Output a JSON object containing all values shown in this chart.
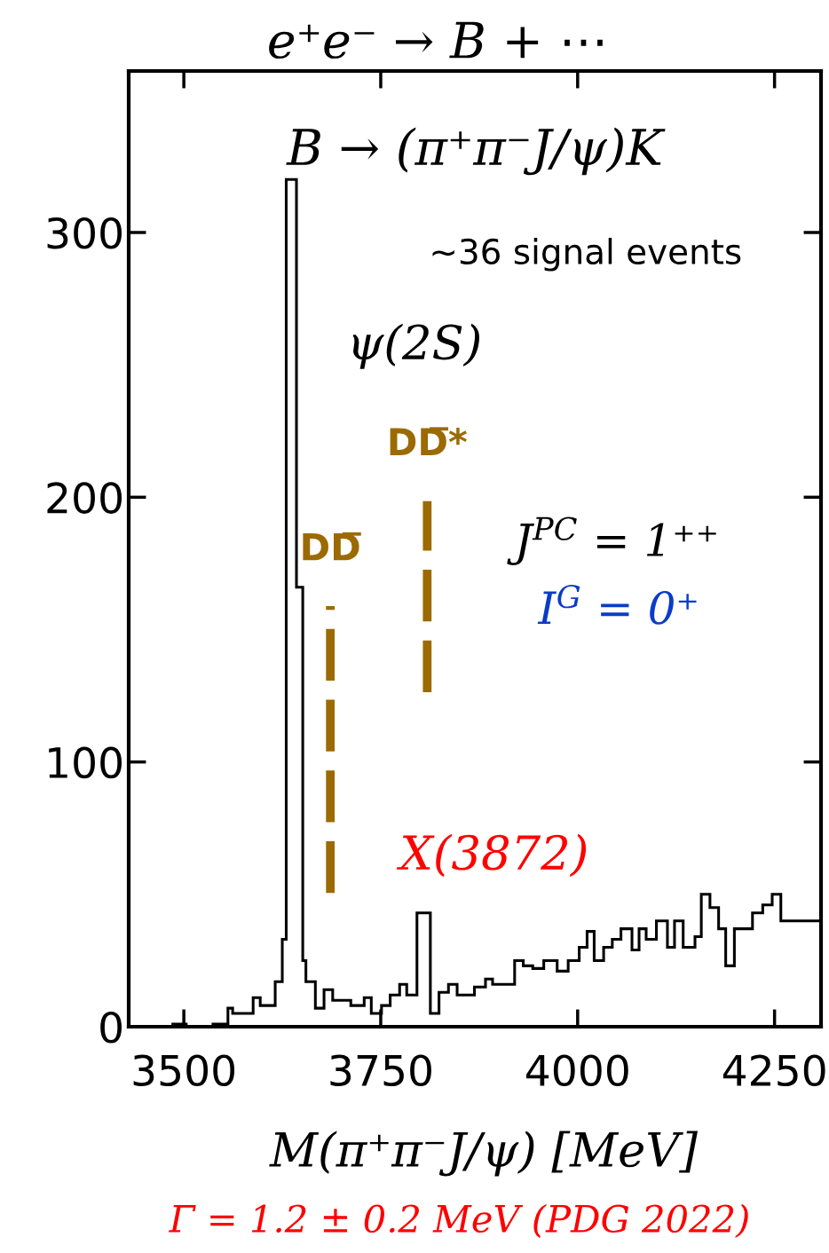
{
  "chart_data": {
    "type": "histogram",
    "title": "e⁺e⁻ → B + ⋯",
    "subtitle": "B → (π⁺π⁻J/ψ)K",
    "xlabel": "M(π⁺π⁻J/ψ) [MeV]",
    "annotations": [
      "~36 signal events",
      "ψ(2S)",
      "J$^{PC}$ = 1⁺⁺",
      "I$^{G}$ = 0⁺",
      "X(3872)",
      "Γ = 1.2 ± 0.2 MeV (PDG 2022)"
    ],
    "bins": [
      3430,
      3486,
      3503,
      3537,
      3556,
      3562,
      3588,
      3597,
      3616,
      3625,
      3630,
      3643,
      3651,
      3655,
      3667,
      3678,
      3689,
      3712,
      3729,
      3738,
      3751,
      3762,
      3774,
      3783,
      3796,
      3813,
      3824,
      3836,
      3847,
      3869,
      3883,
      3892,
      3920,
      3931,
      3943,
      3957,
      3974,
      3988,
      4002,
      4012,
      4021,
      4033,
      4044,
      4055,
      4069,
      4078,
      4087,
      4100,
      4114,
      4123,
      4134,
      4149,
      4157,
      4168,
      4179,
      4188,
      4199,
      4222,
      4235,
      4247,
      4258,
      4309
    ],
    "values": [
      0,
      1,
      0,
      1,
      7,
      5,
      11,
      8,
      17,
      33,
      320,
      166,
      25,
      17,
      7,
      14,
      10,
      8,
      11,
      5,
      8,
      12,
      16,
      12,
      43,
      5,
      13,
      16,
      12,
      15,
      18,
      16,
      25,
      23,
      22,
      25,
      21,
      25,
      30,
      36,
      25,
      30,
      33,
      37,
      29,
      37,
      33,
      40,
      30,
      40,
      30,
      34,
      50,
      45,
      37,
      23,
      37,
      43,
      46,
      50,
      40
    ],
    "color": "#000000",
    "xlim": [
      3430,
      4309
    ],
    "ylim": [
      0,
      361
    ],
    "xticks": [
      3500,
      3750,
      4000,
      4250
    ],
    "yticks": [
      0,
      100,
      200,
      300
    ],
    "ref_lines": [
      {
        "axis": "x",
        "value": 3686,
        "label": "DD̅",
        "color": "#9b6a00",
        "line_style": "dashed"
      },
      {
        "axis": "x",
        "value": 3809,
        "label": "DD̅*",
        "color": "#9b6a00",
        "line_style": "dashed"
      }
    ],
    "grid": false,
    "legend": false
  }
}
